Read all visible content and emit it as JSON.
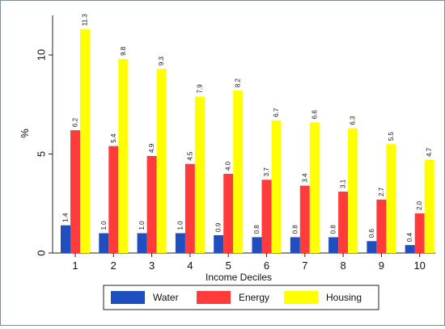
{
  "chart_data": {
    "type": "bar",
    "categories": [
      "1",
      "2",
      "3",
      "4",
      "5",
      "6",
      "7",
      "8",
      "9",
      "10"
    ],
    "series": [
      {
        "name": "Water",
        "color": "#1f4fbf",
        "values": [
          1.4,
          1.0,
          1.0,
          1.0,
          0.9,
          0.8,
          0.8,
          0.8,
          0.6,
          0.4
        ]
      },
      {
        "name": "Energy",
        "color": "#ff3b3b",
        "values": [
          6.2,
          5.4,
          4.9,
          4.5,
          4.0,
          3.7,
          3.4,
          3.1,
          2.7,
          2.0
        ]
      },
      {
        "name": "Housing",
        "color": "#ffff00",
        "values": [
          11.3,
          9.8,
          9.3,
          7.9,
          8.2,
          6.7,
          6.6,
          6.3,
          5.5,
          4.7
        ]
      }
    ],
    "value_labels": {
      "Water": [
        "1.4",
        "1.0",
        "1.0",
        "1.0",
        "0.9",
        "0.8",
        "0.8",
        "0.8",
        "0.6",
        "0.4"
      ],
      "Energy": [
        "6.2",
        "5.4",
        "4.9",
        "4.5",
        "4.0",
        "3.7",
        "3.4",
        "3.1",
        "2.7",
        "2.0"
      ],
      "Housing": [
        "11.3",
        "9.8",
        "9.3",
        "7.9",
        "8.2",
        "6.7",
        "6.6",
        "6.3",
        "5.5",
        "4.7"
      ]
    },
    "xlabel": "Income Deciles",
    "ylabel": "%",
    "ylim": [
      0,
      12
    ],
    "yticks": [
      0,
      5,
      10
    ],
    "ytick_labels": [
      "0",
      "5",
      "10"
    ],
    "grid": false,
    "legend_position": "bottom"
  }
}
